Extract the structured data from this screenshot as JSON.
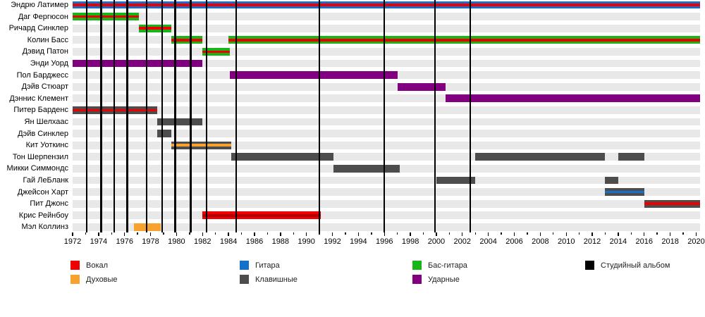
{
  "colors": {
    "vocals": "#ee0000",
    "vocals_dark": "#b30000",
    "winds": "#f7a22e",
    "guitar": "#1471c9",
    "keyboards": "#4d4d4d",
    "bass": "#17b517",
    "drums": "#800080",
    "album": "#000000",
    "band_bg": "#e8e8e8"
  },
  "chart_data": {
    "type": "timeline",
    "title": "",
    "x_domain": [
      1972,
      2020.3
    ],
    "x_major_ticks": [
      1972,
      1974,
      1976,
      1978,
      1980,
      1982,
      1984,
      1986,
      1988,
      1990,
      1992,
      1994,
      1996,
      1998,
      2000,
      2002,
      2004,
      2006,
      2008,
      2010,
      2012,
      2014,
      2016,
      2018,
      2020
    ],
    "x_minor_tick_step": 1,
    "album_lines": [
      1973.1,
      1974.2,
      1975.2,
      1976.2,
      1977.7,
      1978.9,
      1979.9,
      1981.1,
      1982.3,
      1984.6,
      1991.0,
      1996.0,
      1999.9,
      2002.6
    ],
    "rows": [
      {
        "label": "Эндрю Латимер",
        "bars": [
          {
            "start": 1972.0,
            "end": 2020.3,
            "color": "guitar",
            "stripe": "vocals"
          }
        ]
      },
      {
        "label": "Даг Фергюсон",
        "bars": [
          {
            "start": 1972.0,
            "end": 1977.1,
            "color": "bass",
            "stripe": "vocals"
          }
        ]
      },
      {
        "label": "Ричард Синклер",
        "bars": [
          {
            "start": 1977.1,
            "end": 1979.6,
            "color": "bass",
            "stripe": "vocals"
          }
        ]
      },
      {
        "label": "Колин Басс",
        "bars": [
          {
            "start": 1979.6,
            "end": 1982.0,
            "color": "bass",
            "stripe": "vocals"
          },
          {
            "start": 1984.0,
            "end": 2020.3,
            "color": "bass",
            "stripe": "vocals"
          }
        ]
      },
      {
        "label": "Дэвид Патон",
        "bars": [
          {
            "start": 1982.0,
            "end": 1984.1,
            "color": "bass",
            "stripe": "vocals"
          }
        ]
      },
      {
        "label": "Энди Уорд",
        "bars": [
          {
            "start": 1972.0,
            "end": 1982.0,
            "color": "drums"
          }
        ]
      },
      {
        "label": "Пол Барджесс",
        "bars": [
          {
            "start": 1984.1,
            "end": 1997.0,
            "color": "drums"
          }
        ]
      },
      {
        "label": "Дэйв Стюарт",
        "bars": [
          {
            "start": 1997.0,
            "end": 2000.7,
            "color": "drums"
          }
        ]
      },
      {
        "label": "Дэннис Клемент",
        "bars": [
          {
            "start": 2000.7,
            "end": 2020.3,
            "color": "drums"
          }
        ]
      },
      {
        "label": "Питер Барденс",
        "bars": [
          {
            "start": 1972.0,
            "end": 1978.5,
            "color": "keyboards",
            "stripe": "vocals"
          }
        ]
      },
      {
        "label": "Ян Шелхаас",
        "bars": [
          {
            "start": 1978.5,
            "end": 1982.0,
            "color": "keyboards"
          }
        ]
      },
      {
        "label": "Дэйв Синклер",
        "bars": [
          {
            "start": 1978.5,
            "end": 1979.6,
            "color": "keyboards"
          }
        ]
      },
      {
        "label": "Кит Уоткинс",
        "bars": [
          {
            "start": 1979.6,
            "end": 1984.2,
            "color": "keyboards",
            "stripe": "winds"
          }
        ]
      },
      {
        "label": "Тон Шерпензил",
        "bars": [
          {
            "start": 1984.2,
            "end": 1992.1,
            "color": "keyboards"
          },
          {
            "start": 2003.0,
            "end": 2013.0,
            "color": "keyboards"
          },
          {
            "start": 2014.0,
            "end": 2016.0,
            "color": "keyboards"
          }
        ]
      },
      {
        "label": "Микки Симмондс",
        "bars": [
          {
            "start": 1992.1,
            "end": 1997.2,
            "color": "keyboards"
          }
        ]
      },
      {
        "label": "Гай ЛеБланк",
        "bars": [
          {
            "start": 2000.0,
            "end": 2003.0,
            "color": "keyboards"
          },
          {
            "start": 2013.0,
            "end": 2014.0,
            "color": "keyboards"
          }
        ]
      },
      {
        "label": "Джейсон Харт",
        "bars": [
          {
            "start": 2013.0,
            "end": 2016.0,
            "color": "keyboards",
            "stripe": "guitar"
          }
        ]
      },
      {
        "label": "Пит Джонс",
        "bars": [
          {
            "start": 2016.0,
            "end": 2020.3,
            "color": "keyboards",
            "stripe": "vocals"
          }
        ]
      },
      {
        "label": "Крис Рейнбоу",
        "bars": [
          {
            "start": 1982.0,
            "end": 1991.1,
            "color": "vocals",
            "stripe": "vocals_dark"
          }
        ]
      },
      {
        "label": "Мэл Коллинз",
        "bars": [
          {
            "start": 1976.7,
            "end": 1978.8,
            "color": "winds"
          }
        ]
      }
    ],
    "legend": [
      {
        "label": "Вокал",
        "color": "vocals",
        "col": 0,
        "row": 0
      },
      {
        "label": "Духовые",
        "color": "winds",
        "col": 0,
        "row": 1
      },
      {
        "label": "Гитара",
        "color": "guitar",
        "col": 1,
        "row": 0
      },
      {
        "label": "Клавишные",
        "color": "keyboards",
        "col": 1,
        "row": 1
      },
      {
        "label": "Бас-гитара",
        "color": "bass",
        "col": 2,
        "row": 0
      },
      {
        "label": "Ударные",
        "color": "drums",
        "col": 2,
        "row": 1
      },
      {
        "label": "Студийный альбом",
        "color": "album",
        "col": 3,
        "row": 0
      }
    ],
    "legend_col_x": [
      100,
      340,
      585,
      830
    ],
    "legend_row_y": [
      6,
      26
    ]
  }
}
